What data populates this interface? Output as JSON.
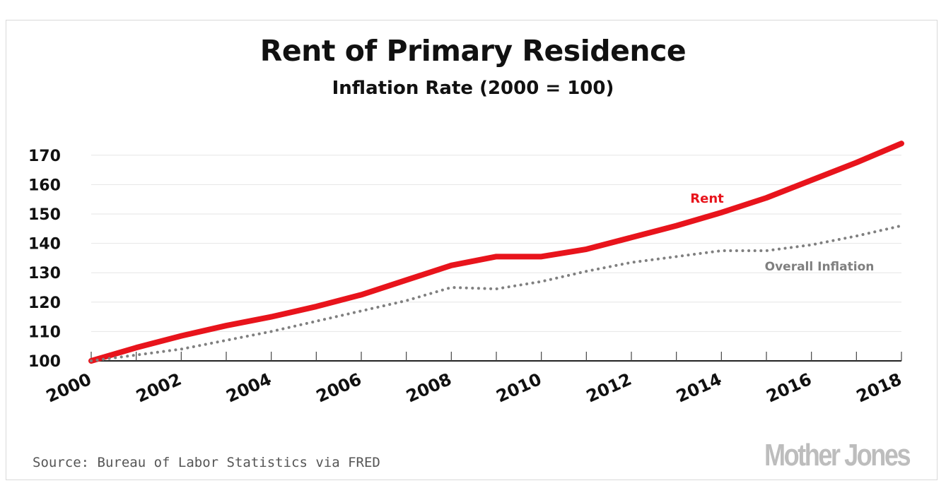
{
  "chart_data": {
    "type": "line",
    "title": "Rent of Primary Residence",
    "subtitle": "Inflation Rate (2000 = 100)",
    "xlabel": "",
    "ylabel": "",
    "x": [
      2000,
      2001,
      2002,
      2003,
      2004,
      2005,
      2006,
      2007,
      2008,
      2009,
      2010,
      2011,
      2012,
      2013,
      2014,
      2015,
      2016,
      2017,
      2018
    ],
    "x_tick_labels": [
      "2000",
      "2002",
      "2004",
      "2006",
      "2008",
      "2010",
      "2012",
      "2014",
      "2016",
      "2018"
    ],
    "y_tick_labels": [
      "100",
      "110",
      "120",
      "130",
      "140",
      "150",
      "160",
      "170"
    ],
    "ylim": [
      100,
      175
    ],
    "grid": true,
    "series": [
      {
        "name": "Rent",
        "color": "#e8141c",
        "style": "solid",
        "values": [
          100,
          104.5,
          108.5,
          112,
          115,
          118.5,
          122.5,
          127.5,
          132.5,
          135.5,
          135.5,
          138,
          142,
          146,
          150.5,
          155.5,
          161.5,
          167.5,
          174
        ]
      },
      {
        "name": "Overall Inflation",
        "color": "#808080",
        "style": "dotted",
        "values": [
          100,
          102,
          104,
          107,
          110,
          113.5,
          117,
          120.5,
          125,
          124.5,
          127,
          130.5,
          133.5,
          135.5,
          137.5,
          137.5,
          139.5,
          142.5,
          146
        ]
      }
    ]
  },
  "source": "Source: Bureau of Labor Statistics via FRED",
  "brand": "Mother Jones"
}
